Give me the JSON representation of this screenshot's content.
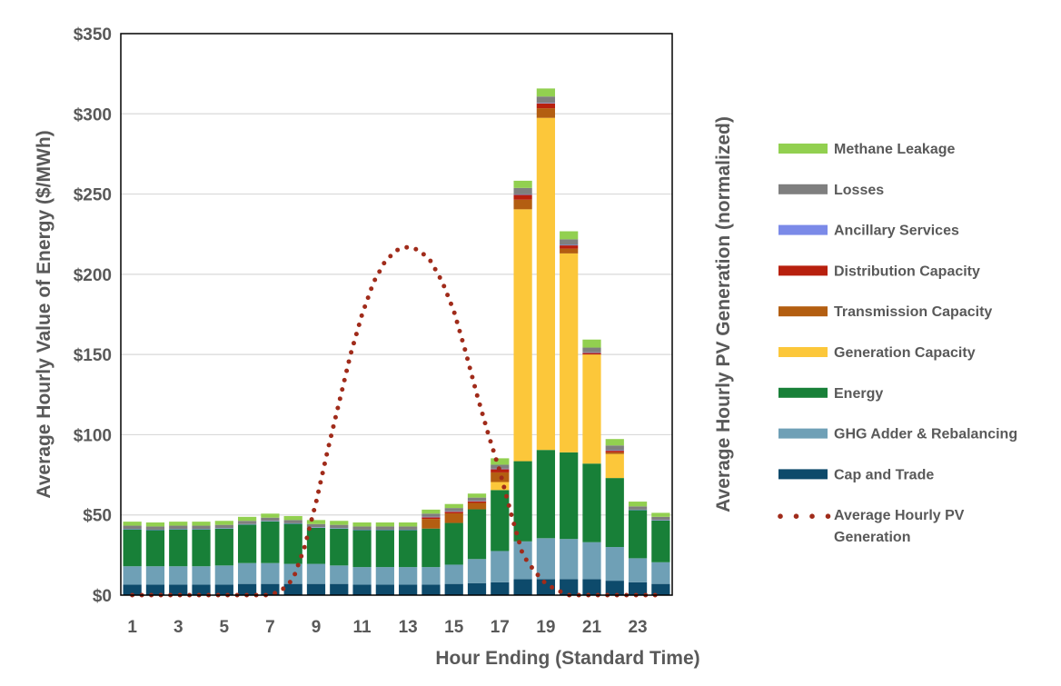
{
  "chart_data": {
    "type": "bar",
    "stacked": true,
    "xlabel": "Hour Ending (Standard Time)",
    "ylabel": "Average Hourly Value of Energy ($/MWh)",
    "y2label": "Average Hourly PV Generation (normalized)",
    "ylim": [
      0,
      350
    ],
    "yticks": [
      "$0",
      "$50",
      "$100",
      "$150",
      "$200",
      "$250",
      "$300",
      "$350"
    ],
    "ytick_values": [
      0,
      50,
      100,
      150,
      200,
      250,
      300,
      350
    ],
    "grid": true,
    "legend_position": "right",
    "categories": [
      1,
      2,
      3,
      4,
      5,
      6,
      7,
      8,
      9,
      10,
      11,
      12,
      13,
      14,
      15,
      16,
      17,
      18,
      19,
      20,
      21,
      22,
      23,
      24
    ],
    "xtick_labels": [
      "1",
      "3",
      "5",
      "7",
      "9",
      "11",
      "13",
      "15",
      "17",
      "19",
      "21",
      "23"
    ],
    "series": [
      {
        "name": "Cap and Trade",
        "color": "#0d4a6b",
        "values": [
          6.5,
          6.5,
          6.5,
          6.5,
          6.5,
          7,
          7,
          7,
          7,
          7,
          6.5,
          6.5,
          6.5,
          6.5,
          7,
          7.5,
          8,
          10,
          10,
          10,
          10,
          9,
          8,
          7
        ]
      },
      {
        "name": "GHG Adder & Rebalancing",
        "color": "#6fa0b6",
        "values": [
          11.5,
          11.5,
          11.5,
          11.5,
          12,
          13,
          13,
          12.5,
          12.5,
          11.5,
          11,
          11,
          11,
          11,
          12,
          15,
          19.5,
          23.5,
          25.5,
          25,
          23,
          21,
          15,
          13.5
        ]
      },
      {
        "name": "Energy",
        "color": "#188038",
        "values": [
          23,
          22.5,
          23,
          23,
          23,
          24,
          26,
          25,
          22.5,
          23,
          23,
          23,
          23,
          24,
          26,
          31,
          38,
          50,
          55,
          54,
          49,
          43,
          30,
          26
        ]
      },
      {
        "name": "Generation Capacity",
        "color": "#fcc73a",
        "values": [
          0,
          0,
          0,
          0,
          0,
          0,
          0,
          0,
          0,
          0,
          0,
          0,
          0,
          0,
          0,
          0,
          5,
          157,
          207,
          124,
          68,
          15,
          0,
          0
        ]
      },
      {
        "name": "Transmission Capacity",
        "color": "#b35e11",
        "values": [
          0,
          0,
          0,
          0,
          0,
          0,
          0,
          0,
          0,
          0,
          0,
          0,
          0,
          6,
          6,
          4,
          6,
          6,
          6,
          3,
          0,
          1,
          0,
          0
        ]
      },
      {
        "name": "Distribution Capacity",
        "color": "#b8200e",
        "values": [
          0,
          0,
          0,
          0,
          0,
          0,
          0,
          0,
          0,
          0,
          0,
          0,
          0,
          1,
          1,
          1,
          2,
          3,
          3,
          2,
          1,
          1,
          0,
          0
        ]
      },
      {
        "name": "Ancillary Services",
        "color": "#7b8ae8",
        "values": [
          0.3,
          0.3,
          0.3,
          0.3,
          0.3,
          0.3,
          0.3,
          0.3,
          0.3,
          0.3,
          0.3,
          0.3,
          0.3,
          0.3,
          0.3,
          0.3,
          0.3,
          0.3,
          0.3,
          0.3,
          0.3,
          0.3,
          0.3,
          0.3
        ]
      },
      {
        "name": "Losses",
        "color": "#7f7f7f",
        "values": [
          2,
          2,
          2,
          2,
          2,
          2,
          2,
          2,
          2,
          2,
          2,
          2,
          2,
          2,
          2,
          2,
          2.5,
          4,
          4,
          3.5,
          3,
          3,
          2,
          2
        ]
      },
      {
        "name": "Methane Leakage",
        "color": "#92d050",
        "values": [
          2.5,
          2.5,
          2.5,
          2.5,
          2.5,
          2.5,
          2.5,
          2.5,
          2.5,
          2.5,
          2.5,
          2.5,
          2.5,
          2.5,
          2.5,
          2.5,
          4,
          4.5,
          5,
          5,
          5,
          4,
          3,
          2.5
        ]
      }
    ],
    "line_series": {
      "name": "Average Hourly PV Generation",
      "color": "#a02b1a",
      "style": "dotted",
      "x": [
        1,
        2,
        3,
        4,
        5,
        6,
        7,
        7.5,
        8,
        8.5,
        9,
        9.5,
        10,
        10.5,
        11,
        11.5,
        12,
        12.5,
        13,
        13.5,
        14,
        14.5,
        15,
        15.5,
        16,
        16.5,
        17,
        17.5,
        18,
        18.5,
        19,
        19.5,
        20,
        20.5,
        21,
        22,
        23,
        24
      ],
      "values": [
        0,
        0,
        0,
        0,
        0,
        0,
        0,
        3,
        10,
        30,
        58,
        90,
        120,
        150,
        175,
        195,
        208,
        215,
        217,
        215,
        208,
        195,
        177,
        152,
        125,
        100,
        77,
        50,
        25,
        15,
        7,
        3,
        0,
        0,
        0,
        0,
        0,
        0
      ]
    }
  },
  "legend": {
    "items": [
      {
        "label": "Methane Leakage",
        "color": "#92d050",
        "kind": "bar"
      },
      {
        "label": "Losses",
        "color": "#7f7f7f",
        "kind": "bar"
      },
      {
        "label": "Ancillary Services",
        "color": "#7b8ae8",
        "kind": "bar"
      },
      {
        "label": "Distribution Capacity",
        "color": "#b8200e",
        "kind": "bar"
      },
      {
        "label": "Transmission Capacity",
        "color": "#b35e11",
        "kind": "bar"
      },
      {
        "label": "Generation Capacity",
        "color": "#fcc73a",
        "kind": "bar"
      },
      {
        "label": "Energy",
        "color": "#188038",
        "kind": "bar"
      },
      {
        "label": "GHG Adder & Rebalancing",
        "color": "#6fa0b6",
        "kind": "bar"
      },
      {
        "label": "Cap and Trade",
        "color": "#0d4a6b",
        "kind": "bar"
      },
      {
        "label": [
          "Average Hourly PV",
          "Generation"
        ],
        "color": "#a02b1a",
        "kind": "dots"
      }
    ]
  }
}
